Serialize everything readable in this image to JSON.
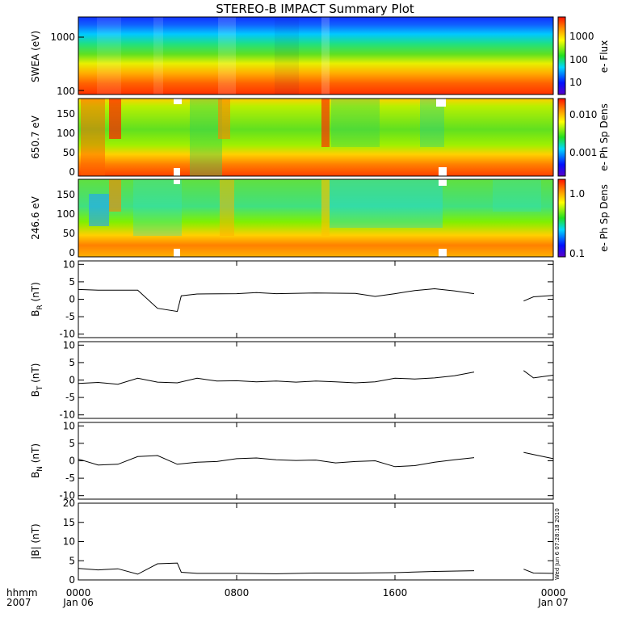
{
  "title": "STEREO-B IMPACT Summary Plot",
  "time_axis": {
    "row_label_1": "hhmm",
    "row_label_2": "2007",
    "ticks": [
      {
        "hours": 0,
        "hhmm": "0000",
        "date": "Jan 06"
      },
      {
        "hours": 8,
        "hhmm": "0800",
        "date": ""
      },
      {
        "hours": 16,
        "hhmm": "1600",
        "date": ""
      },
      {
        "hours": 24,
        "hhmm": "0000",
        "date": "Jan 07"
      }
    ]
  },
  "stamp": "Wed Jun 6 07:28:18 2010",
  "chart_data": [
    {
      "type": "heatmap",
      "ylabel": "SWEA (eV)",
      "yscale": "log",
      "ylim": [
        100,
        2000
      ],
      "yticks": [
        "1000",
        "100"
      ],
      "colorbar_label": "e- Flux",
      "colorbar_ticks": [
        "1000",
        "100",
        "10"
      ],
      "colorscale": "rainbow",
      "notes": "flux decreasing with energy; brighter vertical bands near 01:00-04:00, 08:00 and 12:00"
    },
    {
      "type": "heatmap",
      "ylabel": "650.7 eV",
      "ylim": [
        0,
        180
      ],
      "yticks": [
        "150",
        "100",
        "50",
        "0"
      ],
      "colorbar_label": "e- Ph Sp Dens",
      "colorbar_ticks": [
        "0.010",
        "0.001"
      ],
      "colorscale": "rainbow"
    },
    {
      "type": "heatmap",
      "ylabel": "246.6 eV",
      "ylim": [
        0,
        180
      ],
      "yticks": [
        "150",
        "100",
        "50",
        "0"
      ],
      "colorbar_label": "e- Ph Sp Dens",
      "colorbar_ticks": [
        "1.0",
        "0.1"
      ],
      "colorscale": "rainbow"
    },
    {
      "type": "line",
      "ylabel": "B",
      "ylabel_sub": "R",
      "ylabel_unit": "(nT)",
      "ylim": [
        -11,
        11
      ],
      "yticks": [
        "10",
        "5",
        "0",
        "-5",
        "-10"
      ],
      "x_hours": [
        0,
        1,
        2,
        3,
        4,
        5,
        5.2,
        6,
        8,
        9,
        10,
        12,
        14,
        15,
        16,
        17,
        18,
        19,
        20,
        22.5,
        23,
        24
      ],
      "values": [
        2.8,
        2.6,
        2.6,
        2.6,
        -2.6,
        -3.5,
        1.0,
        1.5,
        1.6,
        1.9,
        1.6,
        1.8,
        1.7,
        0.8,
        1.6,
        2.5,
        3.0,
        2.4,
        1.6,
        -0.5,
        0.7,
        1.1
      ]
    },
    {
      "type": "line",
      "ylabel": "B",
      "ylabel_sub": "T",
      "ylabel_unit": "(nT)",
      "ylim": [
        -11,
        11
      ],
      "yticks": [
        "10",
        "5",
        "0",
        "-5",
        "-10"
      ],
      "x_hours": [
        0,
        1,
        2,
        3,
        4,
        5,
        6,
        7,
        8,
        9,
        10,
        11,
        12,
        13,
        14,
        15,
        16,
        17,
        18,
        19,
        20,
        22.5,
        23,
        24
      ],
      "values": [
        -1.0,
        -0.7,
        -1.2,
        0.5,
        -0.6,
        -0.8,
        0.5,
        -0.3,
        -0.2,
        -0.5,
        -0.3,
        -0.6,
        -0.3,
        -0.5,
        -0.8,
        -0.5,
        0.5,
        0.3,
        0.6,
        1.2,
        2.3,
        2.7,
        0.6,
        1.4
      ]
    },
    {
      "type": "line",
      "ylabel": "B",
      "ylabel_sub": "N",
      "ylabel_unit": "(nT)",
      "ylim": [
        -11,
        11
      ],
      "yticks": [
        "10",
        "5",
        "0",
        "-5",
        "-10"
      ],
      "x_hours": [
        0,
        1,
        2,
        3,
        4,
        5,
        6,
        7,
        8,
        9,
        10,
        11,
        12,
        13,
        14,
        15,
        16,
        17,
        18,
        19,
        20,
        22.5,
        23,
        24
      ],
      "values": [
        0.5,
        -1.2,
        -1.0,
        1.2,
        1.5,
        -1.0,
        -0.4,
        -0.2,
        0.6,
        0.8,
        0.3,
        0.1,
        0.2,
        -0.6,
        -0.2,
        0.0,
        -1.7,
        -1.4,
        -0.4,
        0.3,
        0.9,
        2.4,
        1.8,
        0.6
      ]
    },
    {
      "type": "line",
      "ylabel": "|B| (nT)",
      "ylim": [
        0,
        20
      ],
      "yticks": [
        "20",
        "15",
        "10",
        "5",
        "0"
      ],
      "x_hours": [
        0,
        1,
        2,
        3,
        4,
        5,
        5.2,
        6,
        8,
        10,
        12,
        14,
        16,
        18,
        20,
        22.5,
        23,
        24
      ],
      "values": [
        3.0,
        2.6,
        2.9,
        1.5,
        4.2,
        4.4,
        2.0,
        1.7,
        1.7,
        1.6,
        1.8,
        1.8,
        1.9,
        2.2,
        2.4,
        2.8,
        1.8,
        1.7
      ]
    }
  ]
}
